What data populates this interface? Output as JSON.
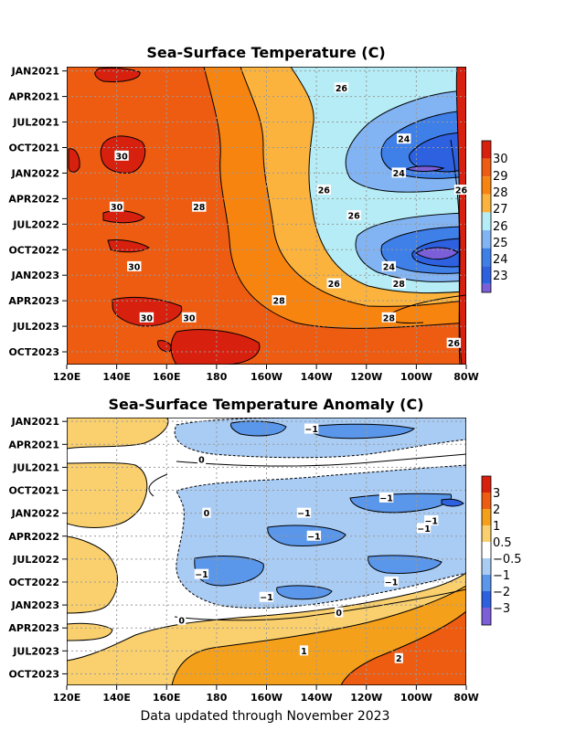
{
  "footer": "Data updated through November 2023",
  "colors": {
    "sst": [
      "#7b5fd9",
      "#2d61df",
      "#3f7fe8",
      "#82b4f3",
      "#b5ecf5",
      "#fbb33e",
      "#f88410",
      "#ee5c12",
      "#d8200f"
    ],
    "anom": [
      "#7b5fd9",
      "#2d61df",
      "#5a96e9",
      "#a9ccf5",
      "#ffffff",
      "#fad06e",
      "#f5a01a",
      "#ee5c12",
      "#d8200f"
    ]
  },
  "chart_data": [
    {
      "type": "heatmap",
      "title": "Sea-Surface Temperature (C)",
      "x_ticks": [
        "120E",
        "140E",
        "160E",
        "180",
        "160W",
        "140W",
        "120W",
        "100W",
        "80W"
      ],
      "y_ticks": [
        "JAN2021",
        "APR2021",
        "JUL2021",
        "OCT2021",
        "JAN2022",
        "APR2022",
        "JUL2022",
        "OCT2022",
        "JAN2023",
        "APR2023",
        "JUL2023",
        "OCT2023"
      ],
      "time_range": [
        "JAN2021",
        "NOV2023"
      ],
      "lon_range": [
        "120E",
        "80W"
      ],
      "colorbar": {
        "labels": [
          "30",
          "29",
          "28",
          "27",
          "26",
          "25",
          "24",
          "23"
        ]
      },
      "contour_labels": [
        {
          "text": "26",
          "lon": "130W",
          "date": "MAR2021"
        },
        {
          "text": "24",
          "lon": "105W",
          "date": "SEP2021"
        },
        {
          "text": "30",
          "lon": "142E",
          "date": "NOV2021"
        },
        {
          "text": "24",
          "lon": "107W",
          "date": "JAN2022"
        },
        {
          "text": "26",
          "lon": "137W",
          "date": "MAR2022"
        },
        {
          "text": "26",
          "lon": "82W",
          "date": "MAR2022"
        },
        {
          "text": "30",
          "lon": "140E",
          "date": "MAY2022"
        },
        {
          "text": "28",
          "lon": "173E",
          "date": "MAY2022"
        },
        {
          "text": "26",
          "lon": "125W",
          "date": "JUN2022"
        },
        {
          "text": "30",
          "lon": "147E",
          "date": "DEC2022"
        },
        {
          "text": "24",
          "lon": "111W",
          "date": "DEC2022"
        },
        {
          "text": "26",
          "lon": "133W",
          "date": "FEB2023"
        },
        {
          "text": "28",
          "lon": "107W",
          "date": "FEB2023"
        },
        {
          "text": "28",
          "lon": "155W",
          "date": "APR2023"
        },
        {
          "text": "30",
          "lon": "152E",
          "date": "JUN2023"
        },
        {
          "text": "30",
          "lon": "169E",
          "date": "JUN2023"
        },
        {
          "text": "28",
          "lon": "111W",
          "date": "JUN2023"
        },
        {
          "text": "26",
          "lon": "85W",
          "date": "SEP2023"
        }
      ]
    },
    {
      "type": "heatmap",
      "title": "Sea-Surface Temperature Anomaly (C)",
      "x_ticks": [
        "120E",
        "140E",
        "160E",
        "180",
        "160W",
        "140W",
        "120W",
        "100W",
        "80W"
      ],
      "y_ticks": [
        "JAN2021",
        "APR2021",
        "JUL2021",
        "OCT2021",
        "JAN2022",
        "APR2022",
        "JUL2022",
        "OCT2022",
        "JAN2023",
        "APR2023",
        "JUL2023",
        "OCT2023"
      ],
      "time_range": [
        "JAN2021",
        "NOV2023"
      ],
      "lon_range": [
        "120E",
        "80W"
      ],
      "colorbar": {
        "labels": [
          "3",
          "2",
          "1",
          "0.5",
          "−0.5",
          "−1",
          "−2",
          "−3"
        ]
      },
      "contour_labels": [
        {
          "text": "−1",
          "lon": "142W",
          "date": "FEB2021"
        },
        {
          "text": "0",
          "lon": "174E",
          "date": "JUN2021"
        },
        {
          "text": "0",
          "lon": "176E",
          "date": "JAN2022"
        },
        {
          "text": "−1",
          "lon": "112W",
          "date": "NOV2021"
        },
        {
          "text": "−1",
          "lon": "145W",
          "date": "JAN2022"
        },
        {
          "text": "−1",
          "lon": "94W",
          "date": "FEB2022"
        },
        {
          "text": "−1",
          "lon": "141W",
          "date": "APR2022"
        },
        {
          "text": "−1",
          "lon": "97W",
          "date": "MAR2022"
        },
        {
          "text": "−1",
          "lon": "174E",
          "date": "SEP2022"
        },
        {
          "text": "−1",
          "lon": "110W",
          "date": "OCT2022"
        },
        {
          "text": "−1",
          "lon": "160W",
          "date": "DEC2022"
        },
        {
          "text": "0",
          "lon": "131W",
          "date": "FEB2023"
        },
        {
          "text": "0",
          "lon": "166E",
          "date": "MAR2023"
        },
        {
          "text": "1",
          "lon": "145W",
          "date": "JUL2023"
        },
        {
          "text": "2",
          "lon": "107W",
          "date": "AUG2023"
        }
      ]
    }
  ]
}
